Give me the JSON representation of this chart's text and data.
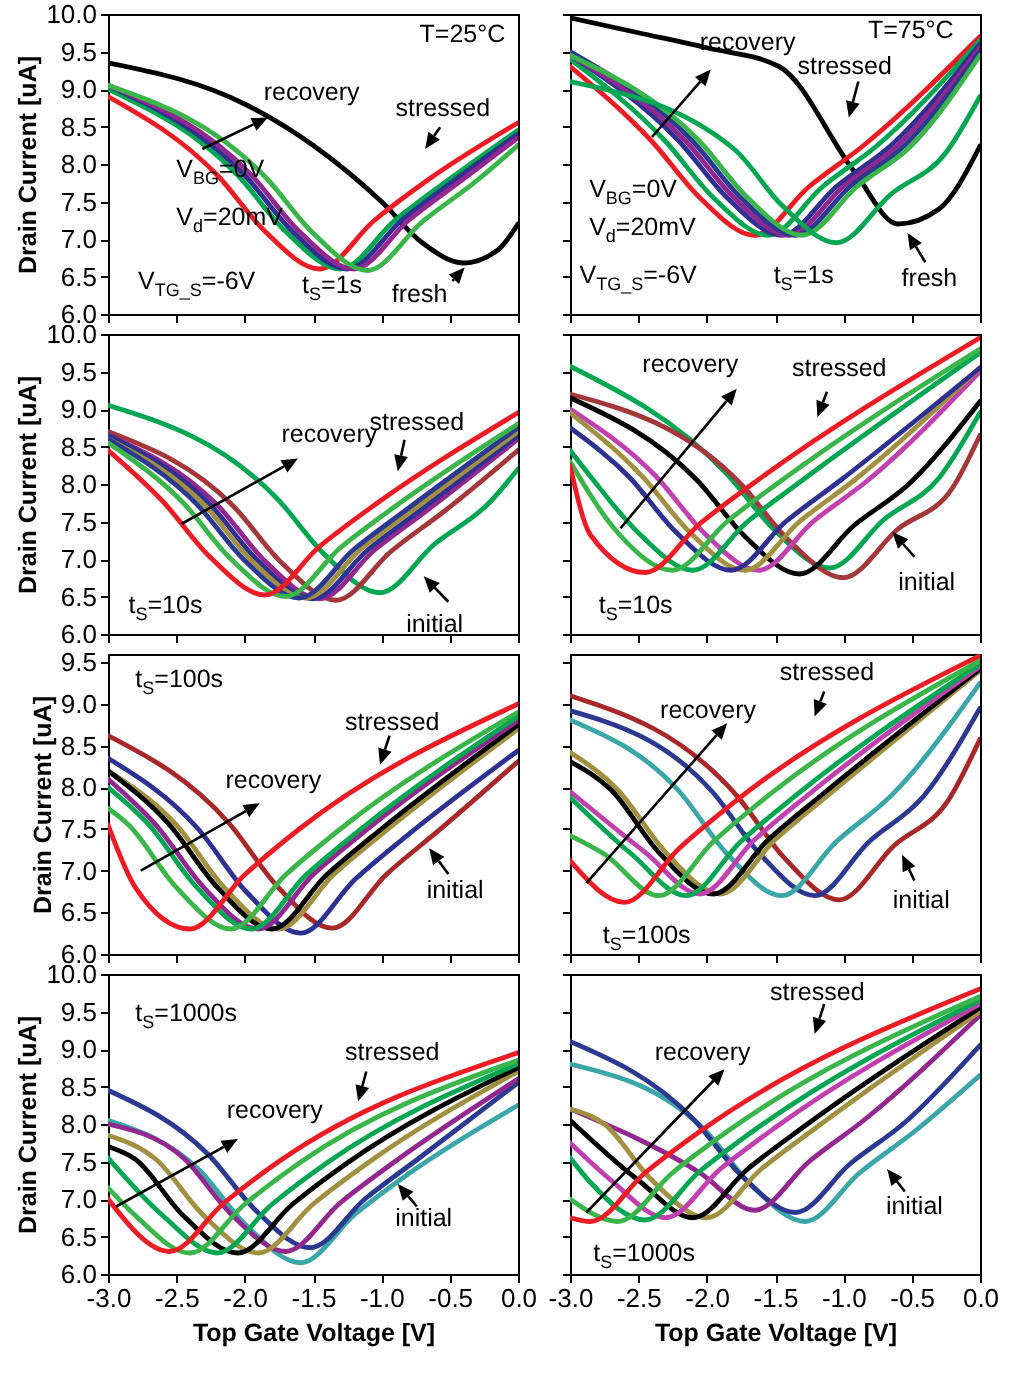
{
  "chart_data": [
    {
      "type": "line",
      "ylabel": "Drain Current [uA]",
      "xlim": [
        -3,
        0
      ],
      "ylim": [
        6,
        10
      ],
      "tick_labels": "y",
      "xticks": [
        -3,
        -2.5,
        -2,
        -1.5,
        -1,
        -0.5,
        0
      ],
      "yticks": [
        {
          "value": 6,
          "label": "6.0"
        },
        6.5,
        {
          "value": 7,
          "label": "7.0"
        },
        7.5,
        {
          "value": 8,
          "label": "8.0"
        },
        8.5,
        {
          "value": 9,
          "label": "9.0"
        },
        9.5,
        {
          "value": 10,
          "label": "10.0"
        }
      ],
      "annotations": [
        "T=25°C",
        "V$_{BG}$=0V",
        "V$_{d}$=20mV",
        "V$_{TG_S}$=-6V",
        "t$_{S}$=1s",
        "recovery",
        "stressed",
        "fresh"
      ],
      "series": [
        {
          "color": "#000000",
          "x": [
            -3,
            -2,
            -1.5,
            -1,
            -0.7,
            -0.4,
            -0.15,
            0
          ],
          "values": [
            9.35,
            8.8,
            8.25,
            7.5,
            6.95,
            6.68,
            6.85,
            7.2
          ]
        },
        {
          "color": "#ed1c24",
          "x": [
            -3,
            -2.2,
            -1.85,
            -1.45,
            -1.05,
            -0.65,
            0
          ],
          "values": [
            8.9,
            7.85,
            7.1,
            6.6,
            7.25,
            7.8,
            8.55
          ]
        },
        {
          "color": "#00a651",
          "x": [
            -3,
            -2.05,
            -1.7,
            -1.3,
            -0.9,
            -0.5,
            0
          ],
          "values": [
            9.0,
            7.85,
            7.1,
            6.6,
            7.25,
            7.8,
            8.45
          ]
        },
        {
          "color": "#2e3192",
          "x": [
            -3,
            -2,
            -1.65,
            -1.25,
            -0.85,
            -0.45,
            0
          ],
          "values": [
            9.05,
            7.85,
            7.1,
            6.6,
            7.25,
            7.8,
            8.4
          ]
        },
        {
          "color": "#92278f",
          "x": [
            -3,
            -1.95,
            -1.6,
            -1.2,
            -0.8,
            -0.4,
            0
          ],
          "values": [
            9.05,
            7.85,
            7.1,
            6.6,
            7.25,
            7.8,
            8.35
          ]
        },
        {
          "color": "#39b54a",
          "x": [
            -3,
            -1.85,
            -1.5,
            -1.1,
            -0.7,
            -0.3,
            0
          ],
          "values": [
            9.05,
            7.83,
            7.08,
            6.58,
            7.23,
            7.78,
            8.25
          ]
        }
      ]
    },
    {
      "type": "line",
      "xlim": [
        -3,
        0
      ],
      "ylim": [
        6,
        10
      ],
      "tick_labels": false,
      "xticks": [
        -3,
        -2.5,
        -2,
        -1.5,
        -1,
        -0.5,
        0
      ],
      "yticks": [
        6,
        6.5,
        7,
        7.5,
        8,
        8.5,
        9,
        9.5,
        10
      ],
      "annotations": [
        "T=75°C",
        "V$_{BG}$=0V",
        "V$_{d}$=20mV",
        "V$_{TG_S}$=-6V",
        "t$_{S}$=1s",
        "recovery",
        "stressed",
        "fresh"
      ],
      "series": [
        {
          "color": "#000000",
          "x": [
            -3,
            -2.5,
            -2,
            -1.47,
            -0.92,
            -0.6,
            -0.3,
            0
          ],
          "values": [
            9.95,
            9.75,
            9.55,
            9.3,
            7.9,
            7.2,
            7.4,
            8.24
          ]
        },
        {
          "color": "#ed1c24",
          "x": [
            -3,
            -2.4,
            -2.05,
            -1.65,
            -1.25,
            -0.85,
            0
          ],
          "values": [
            9.3,
            8.3,
            7.55,
            7.05,
            7.7,
            8.25,
            9.7
          ]
        },
        {
          "color": "#00a651",
          "x": [
            -3,
            -2.3,
            -1.95,
            -1.55,
            -1.15,
            -0.75,
            0
          ],
          "values": [
            9.4,
            8.3,
            7.55,
            7.05,
            7.7,
            8.25,
            9.65
          ]
        },
        {
          "color": "#2e3192",
          "x": [
            -3,
            -2.2,
            -1.85,
            -1.45,
            -1.05,
            -0.65,
            0
          ],
          "values": [
            9.45,
            8.3,
            7.55,
            7.05,
            7.7,
            8.25,
            9.6
          ]
        },
        {
          "color": "#92278f",
          "x": [
            -3,
            -2.15,
            -1.8,
            -1.4,
            -1,
            -0.6,
            0
          ],
          "values": [
            9.45,
            8.3,
            7.55,
            7.05,
            7.7,
            8.25,
            9.55
          ]
        },
        {
          "color": "#2b3990",
          "x": [
            -3,
            -2.1,
            -1.75,
            -1.35,
            -0.95,
            -0.55,
            0
          ],
          "values": [
            9.5,
            8.3,
            7.55,
            7.05,
            7.7,
            8.25,
            9.5
          ]
        },
        {
          "color": "#39b54a",
          "x": [
            -3,
            -2.05,
            -1.7,
            -1.3,
            -0.9,
            -0.5,
            0
          ],
          "values": [
            9.45,
            8.3,
            7.55,
            7.05,
            7.7,
            8.25,
            9.45
          ]
        },
        {
          "color": "#00a651",
          "x": [
            -3,
            -1.8,
            -1.45,
            -1.05,
            -0.65,
            -0.25,
            0
          ],
          "values": [
            9.1,
            8.2,
            7.45,
            6.95,
            7.6,
            8.15,
            8.9
          ]
        }
      ]
    },
    {
      "type": "line",
      "ylabel": "Drain Current [uA]",
      "xlim": [
        -3,
        0
      ],
      "ylim": [
        6,
        10
      ],
      "tick_labels": "y",
      "xticks": [
        -3,
        -2.5,
        -2,
        -1.5,
        -1,
        -0.5,
        0
      ],
      "yticks": [
        {
          "value": 6,
          "label": "6.0"
        },
        6.5,
        {
          "value": 7,
          "label": "7.0"
        },
        7.5,
        {
          "value": 8,
          "label": "8.0"
        },
        8.5,
        {
          "value": 9,
          "label": "9.0"
        },
        9.5,
        {
          "value": 10,
          "label": "10.0"
        }
      ],
      "annotations": [
        "t$_{S}$=10s",
        {
          "text": "recovery",
          "x": -2.46,
          "y": 7.47
        },
        "stressed",
        "initial"
      ],
      "series": [
        {
          "color": "#00a651",
          "x": [
            -3,
            -1.76,
            -1.41,
            -1.01,
            -0.61,
            -0.21,
            0
          ],
          "values": [
            9.05,
            7.8,
            7.05,
            6.55,
            7.2,
            7.75,
            8.2
          ]
        },
        {
          "color": "#a4373a",
          "x": [
            -3,
            -2.08,
            -1.73,
            -1.33,
            -0.93,
            -0.53,
            0
          ],
          "values": [
            8.7,
            7.7,
            6.95,
            6.45,
            7.1,
            7.65,
            8.45
          ]
        },
        {
          "color": "#92278f",
          "x": [
            -3,
            -2.2,
            -1.85,
            -1.45,
            -1.05,
            -0.65,
            0
          ],
          "values": [
            8.65,
            7.72,
            6.97,
            6.47,
            7.12,
            7.67,
            8.6
          ]
        },
        {
          "color": "#2e3192",
          "x": [
            -3,
            -2.25,
            -1.9,
            -1.5,
            -1.1,
            -0.7,
            0
          ],
          "values": [
            8.65,
            7.72,
            6.97,
            6.47,
            7.12,
            7.67,
            8.65
          ]
        },
        {
          "color": "#a09040",
          "x": [
            -3,
            -2.3,
            -1.95,
            -1.55,
            -1.15,
            -0.75,
            0
          ],
          "values": [
            8.6,
            7.73,
            6.98,
            6.48,
            7.13,
            7.68,
            8.7
          ]
        },
        {
          "color": "#2b3990",
          "x": [
            -3,
            -2.35,
            -2,
            -1.6,
            -1.2,
            -0.8,
            0
          ],
          "values": [
            8.6,
            7.73,
            6.98,
            6.48,
            7.13,
            7.68,
            8.75
          ]
        },
        {
          "color": "#39b54a",
          "x": [
            -3,
            -2.45,
            -2.1,
            -1.7,
            -1.3,
            -0.9,
            0
          ],
          "values": [
            8.55,
            7.75,
            7.0,
            6.5,
            7.15,
            7.7,
            8.8
          ]
        },
        {
          "color": "#ed1c24",
          "x": [
            -3,
            -2.6,
            -2.25,
            -1.85,
            -1.45,
            -1.05,
            0
          ],
          "values": [
            8.45,
            7.77,
            7.02,
            6.52,
            7.17,
            7.72,
            8.95
          ]
        }
      ]
    },
    {
      "type": "line",
      "xlim": [
        -3,
        0
      ],
      "ylim": [
        6,
        10
      ],
      "tick_labels": false,
      "xticks": [
        -3,
        -2.5,
        -2,
        -1.5,
        -1,
        -0.5,
        0
      ],
      "yticks": [
        6,
        6.5,
        7,
        7.5,
        8,
        8.5,
        9,
        9.5,
        10
      ],
      "annotations": [
        "t$_{S}$=10s",
        "recovery",
        "stressed",
        "initial"
      ],
      "series": [
        {
          "color": "#00a651",
          "x": [
            -3,
            -1.85,
            -1.5,
            -1.1,
            -0.7,
            -0.3,
            0
          ],
          "values": [
            9.57,
            8.13,
            7.38,
            6.88,
            7.53,
            8.08,
            8.95
          ]
        },
        {
          "color": "#a4373a",
          "x": [
            -3,
            -1.75,
            -1.4,
            -1,
            -0.6,
            -0.2,
            0
          ],
          "values": [
            9.2,
            8.0,
            7.25,
            6.75,
            7.4,
            7.95,
            8.65
          ]
        },
        {
          "color": "#000000",
          "x": [
            -3,
            -2.07,
            -1.72,
            -1.32,
            -0.92,
            -0.52,
            0
          ],
          "values": [
            9.15,
            8.05,
            7.3,
            6.8,
            7.45,
            8.0,
            9.1
          ]
        },
        {
          "color": "#c040b0",
          "x": [
            -3,
            -2.37,
            -2.02,
            -1.62,
            -1.22,
            -0.82,
            0
          ],
          "values": [
            9.0,
            8.1,
            7.35,
            6.85,
            7.5,
            8.05,
            9.5
          ]
        },
        {
          "color": "#a09040",
          "x": [
            -3,
            -2.47,
            -2.12,
            -1.72,
            -1.32,
            -0.92,
            0
          ],
          "values": [
            8.95,
            8.1,
            7.35,
            6.85,
            7.5,
            8.05,
            9.55
          ]
        },
        {
          "color": "#2e3192",
          "x": [
            -3,
            -2.57,
            -2.22,
            -1.82,
            -1.42,
            -1.02,
            0
          ],
          "values": [
            8.75,
            8.1,
            7.35,
            6.85,
            7.5,
            8.05,
            9.55
          ]
        },
        {
          "color": "#00a651",
          "x": [
            -3,
            -2.85,
            -2.5,
            -2.1,
            -1.7,
            -1.3,
            0
          ],
          "values": [
            8.45,
            8.1,
            7.35,
            6.85,
            7.5,
            8.05,
            9.75
          ]
        },
        {
          "color": "#39b54a",
          "x": [
            -3,
            -2.65,
            -2.25,
            -1.85,
            -1.45,
            0
          ],
          "values": [
            8.3,
            7.35,
            6.85,
            7.5,
            8.05,
            9.8
          ]
        },
        {
          "color": "#ed1c24",
          "x": [
            -3,
            -2.85,
            -2.45,
            -2.05,
            -1.65,
            0
          ],
          "values": [
            8.25,
            7.32,
            6.82,
            7.47,
            8.02,
            9.95
          ]
        }
      ]
    },
    {
      "type": "line",
      "ylabel": "Drain Current [uA]",
      "xlim": [
        -3,
        0
      ],
      "ylim": [
        6,
        9.6
      ],
      "tick_labels": "y",
      "xticks": [
        -3,
        -2.5,
        -2,
        -1.5,
        -1,
        -0.5,
        0
      ],
      "yticks": [
        {
          "value": 6,
          "label": "6.0"
        },
        6.5,
        {
          "value": 7,
          "label": "7.0"
        },
        7.5,
        {
          "value": 8,
          "label": "8.0"
        },
        8.5,
        {
          "value": 9,
          "label": "9.0"
        },
        9.5
      ],
      "annotations": [
        "t$_{S}$=100s",
        "recovery",
        "stressed",
        "initial"
      ],
      "series": [
        {
          "color": "#a8282a",
          "x": [
            -3,
            -2.11,
            -1.76,
            -1.36,
            -0.96,
            -0.56,
            0
          ],
          "values": [
            8.62,
            7.56,
            6.81,
            6.31,
            6.96,
            7.51,
            8.31
          ]
        },
        {
          "color": "#2e3192",
          "x": [
            -3,
            -2.34,
            -1.99,
            -1.59,
            -1.19,
            -0.79,
            0
          ],
          "values": [
            8.35,
            7.5,
            6.75,
            6.25,
            6.9,
            7.45,
            8.44
          ]
        },
        {
          "color": "#a09040",
          "x": [
            -3,
            -2.5,
            -2.15,
            -1.75,
            -1.35,
            -0.95,
            0
          ],
          "values": [
            8.2,
            7.55,
            6.8,
            6.3,
            6.95,
            7.5,
            8.7
          ]
        },
        {
          "color": "#000000",
          "x": [
            -3,
            -2.55,
            -2.2,
            -1.8,
            -1.4,
            -1,
            0
          ],
          "values": [
            8.2,
            7.55,
            6.8,
            6.3,
            6.95,
            7.5,
            8.75
          ]
        },
        {
          "color": "#92278f",
          "x": [
            -3,
            -2.65,
            -2.3,
            -1.9,
            -1.5,
            -1.1,
            0
          ],
          "values": [
            8.1,
            7.55,
            6.8,
            6.3,
            6.95,
            7.5,
            8.8
          ]
        },
        {
          "color": "#00a651",
          "x": [
            -3,
            -2.7,
            -2.35,
            -1.95,
            -1.55,
            -1.15,
            0
          ],
          "values": [
            8.0,
            7.55,
            6.8,
            6.3,
            6.95,
            7.5,
            8.85
          ]
        },
        {
          "color": "#39b54a",
          "x": [
            -3,
            -2.85,
            -2.5,
            -2.1,
            -1.7,
            -1.3,
            0
          ],
          "values": [
            7.75,
            7.55,
            6.8,
            6.3,
            6.95,
            7.5,
            8.9
          ]
        },
        {
          "color": "#ed1c24",
          "x": [
            -3,
            -2.8,
            -2.4,
            -2,
            -1.6,
            0
          ],
          "values": [
            7.55,
            6.8,
            6.3,
            6.95,
            7.5,
            9.0
          ]
        }
      ]
    },
    {
      "type": "line",
      "xlim": [
        -3,
        0
      ],
      "ylim": [
        6,
        9.6
      ],
      "tick_labels": false,
      "xticks": [
        -3,
        -2.5,
        -2,
        -1.5,
        -1,
        -0.5,
        0
      ],
      "yticks": [
        6,
        6.5,
        7,
        7.5,
        8,
        8.5,
        9,
        9.5
      ],
      "annotations": [
        "t$_{S}$=100s",
        "recovery",
        "stressed",
        "initial"
      ],
      "series": [
        {
          "color": "#a8282a",
          "x": [
            -3,
            -1.78,
            -1.43,
            -1.03,
            -0.63,
            -0.23,
            0
          ],
          "values": [
            9.1,
            7.9,
            7.15,
            6.65,
            7.3,
            7.85,
            8.58
          ]
        },
        {
          "color": "#2b3990",
          "x": [
            -3,
            -1.96,
            -1.61,
            -1.21,
            -0.81,
            -0.41,
            0
          ],
          "values": [
            8.92,
            7.95,
            7.2,
            6.7,
            7.35,
            7.9,
            8.95
          ]
        },
        {
          "color": "#3aa6a8",
          "x": [
            -3,
            -2.2,
            -1.85,
            -1.45,
            -1.05,
            -0.65,
            0
          ],
          "values": [
            8.81,
            7.95,
            7.2,
            6.7,
            7.35,
            7.9,
            9.25
          ]
        },
        {
          "color": "#a09040",
          "x": [
            -3,
            -2.65,
            -2.3,
            -1.9,
            -1.5,
            -1.1,
            0
          ],
          "values": [
            8.42,
            7.97,
            7.22,
            6.72,
            7.37,
            7.92,
            9.4
          ]
        },
        {
          "color": "#000000",
          "x": [
            -3,
            -2.7,
            -2.35,
            -1.95,
            -1.55,
            -1.15,
            0
          ],
          "values": [
            8.31,
            7.97,
            7.22,
            6.72,
            7.37,
            7.92,
            9.42
          ]
        },
        {
          "color": "#c040b0",
          "x": [
            -3,
            -2.45,
            -2.05,
            -1.65,
            -1.25,
            0
          ],
          "values": [
            7.95,
            7.22,
            6.72,
            7.37,
            7.92,
            9.45
          ]
        },
        {
          "color": "#00a651",
          "x": [
            -3,
            -2.55,
            -2.15,
            -1.75,
            -1.35,
            0
          ],
          "values": [
            7.88,
            7.2,
            6.7,
            7.35,
            7.9,
            9.48
          ]
        },
        {
          "color": "#39b54a",
          "x": [
            -3,
            -2.75,
            -2.35,
            -1.95,
            -1.55,
            0
          ],
          "values": [
            7.42,
            7.2,
            6.7,
            7.35,
            7.9,
            9.52
          ]
        },
        {
          "color": "#ed1c24",
          "x": [
            -3,
            -2.6,
            -2.2,
            -1.8,
            0
          ],
          "values": [
            7.12,
            6.62,
            7.27,
            7.82,
            9.58
          ]
        }
      ]
    },
    {
      "type": "line",
      "xlabel": "Top Gate Voltage [V]",
      "ylabel": "Drain Current [uA]",
      "xlim": [
        -3,
        0
      ],
      "ylim": [
        6,
        10
      ],
      "xticks": [
        {
          "value": -3,
          "label": "-3.0"
        },
        -2.5,
        {
          "value": -2,
          "label": "-2.0"
        },
        -1.5,
        {
          "value": -1,
          "label": "-1.0"
        },
        -0.5,
        {
          "value": 0,
          "label": "0.0"
        }
      ],
      "yticks": [
        {
          "value": 6,
          "label": "6.0"
        },
        6.5,
        {
          "value": 7,
          "label": "7.0"
        },
        7.5,
        {
          "value": 8,
          "label": "8.0"
        },
        8.5,
        {
          "value": 9,
          "label": "9.0"
        },
        9.5,
        {
          "value": 10,
          "label": "10.0"
        }
      ],
      "annotations": [
        "t$_{S}$=1000s",
        {
          "text": "recovery",
          "x": -2.94,
          "y": 6.9
        },
        "stressed",
        "initial"
      ],
      "series": [
        {
          "color": "#3aa6a8",
          "x": [
            -3,
            -2.34,
            -1.99,
            -1.59,
            -1.19,
            -0.79,
            0
          ],
          "values": [
            8.05,
            7.4,
            6.65,
            6.15,
            6.8,
            7.35,
            8.25
          ]
        },
        {
          "color": "#2b3990",
          "x": [
            -3,
            -2.27,
            -1.92,
            -1.52,
            -1.12,
            -0.72,
            0
          ],
          "values": [
            8.45,
            7.6,
            6.85,
            6.35,
            7.0,
            7.55,
            8.55
          ]
        },
        {
          "color": "#92278f",
          "x": [
            -3,
            -2.45,
            -2.1,
            -1.7,
            -1.3,
            -0.9,
            0
          ],
          "values": [
            8.0,
            7.55,
            6.8,
            6.3,
            6.95,
            7.5,
            8.6
          ]
        },
        {
          "color": "#a09040",
          "x": [
            -3,
            -2.65,
            -2.3,
            -1.9,
            -1.5,
            -1.1,
            0
          ],
          "values": [
            7.85,
            7.53,
            6.78,
            6.28,
            6.93,
            7.48,
            8.7
          ]
        },
        {
          "color": "#000000",
          "x": [
            -3,
            -2.8,
            -2.45,
            -2.05,
            -1.65,
            -1.25,
            0
          ],
          "values": [
            7.7,
            7.53,
            6.78,
            6.28,
            6.93,
            7.48,
            8.75
          ]
        },
        {
          "color": "#00a651",
          "x": [
            -3,
            -2.6,
            -2.2,
            -1.8,
            -1.4,
            0
          ],
          "values": [
            7.55,
            6.78,
            6.28,
            6.93,
            7.48,
            8.8
          ]
        },
        {
          "color": "#39b54a",
          "x": [
            -3,
            -2.8,
            -2.4,
            -2,
            -1.6,
            0
          ],
          "values": [
            7.15,
            6.78,
            6.28,
            6.93,
            7.48,
            8.85
          ]
        },
        {
          "color": "#ed1c24",
          "x": [
            -3,
            -2.55,
            -2.15,
            -1.75,
            0
          ],
          "values": [
            7.0,
            6.3,
            6.95,
            7.5,
            8.95
          ]
        }
      ]
    },
    {
      "type": "line",
      "xlabel": "Top Gate Voltage [V]",
      "xlim": [
        -3,
        0
      ],
      "ylim": [
        6,
        10
      ],
      "tick_labels": "x",
      "xticks": [
        {
          "value": -3,
          "label": "-3.0"
        },
        -2.5,
        {
          "value": -2,
          "label": "-2.0"
        },
        -1.5,
        {
          "value": -1,
          "label": "-1.0"
        },
        -0.5,
        {
          "value": 0,
          "label": "0.0"
        }
      ],
      "yticks": [
        6,
        6.5,
        7,
        7.5,
        8,
        8.5,
        9,
        9.5,
        10
      ],
      "annotations": [
        "t$_{S}$=1000s",
        "recovery",
        "stressed",
        "initial"
      ],
      "series": [
        {
          "color": "#3aa6a8",
          "x": [
            -3,
            -2.03,
            -1.68,
            -1.28,
            -0.88,
            -0.48,
            0
          ],
          "values": [
            8.8,
            7.95,
            7.2,
            6.7,
            7.35,
            7.9,
            8.65
          ]
        },
        {
          "color": "#2b3990",
          "x": [
            -3,
            -2.1,
            -1.75,
            -1.35,
            -0.95,
            -0.55,
            0
          ],
          "values": [
            9.1,
            8.07,
            7.32,
            6.82,
            7.47,
            8.02,
            9.05
          ]
        },
        {
          "color": "#92278f",
          "x": [
            -3,
            -2.05,
            -1.65,
            -1.25,
            -0.85,
            0
          ],
          "values": [
            8.2,
            7.35,
            6.85,
            7.5,
            8.05,
            9.45
          ]
        },
        {
          "color": "#a09040",
          "x": [
            -3,
            -2.75,
            -2.4,
            -2,
            -1.6,
            -1.2,
            0
          ],
          "values": [
            8.2,
            8.0,
            7.25,
            6.75,
            7.4,
            7.95,
            9.5
          ]
        },
        {
          "color": "#000000",
          "x": [
            -3,
            -2.5,
            -2.1,
            -1.7,
            -1.3,
            0
          ],
          "values": [
            8.05,
            7.25,
            6.75,
            7.4,
            7.95,
            9.55
          ]
        },
        {
          "color": "#c040b0",
          "x": [
            -3,
            -2.7,
            -2.3,
            -1.9,
            -1.5,
            0
          ],
          "values": [
            7.75,
            7.25,
            6.75,
            7.4,
            7.95,
            9.6
          ]
        },
        {
          "color": "#00a651",
          "x": [
            -3,
            -2.85,
            -2.45,
            -2.05,
            -1.65,
            0
          ],
          "values": [
            7.55,
            7.22,
            6.72,
            7.37,
            7.92,
            9.65
          ]
        },
        {
          "color": "#39b54a",
          "x": [
            -3,
            -2.65,
            -2.25,
            -1.85,
            0
          ],
          "values": [
            7.0,
            6.7,
            7.35,
            7.9,
            9.7
          ]
        },
        {
          "color": "#ed1c24",
          "x": [
            -3,
            -2.85,
            -2.45,
            -2.05,
            0
          ],
          "values": [
            6.75,
            6.7,
            7.35,
            7.9,
            9.8
          ]
        }
      ]
    }
  ]
}
